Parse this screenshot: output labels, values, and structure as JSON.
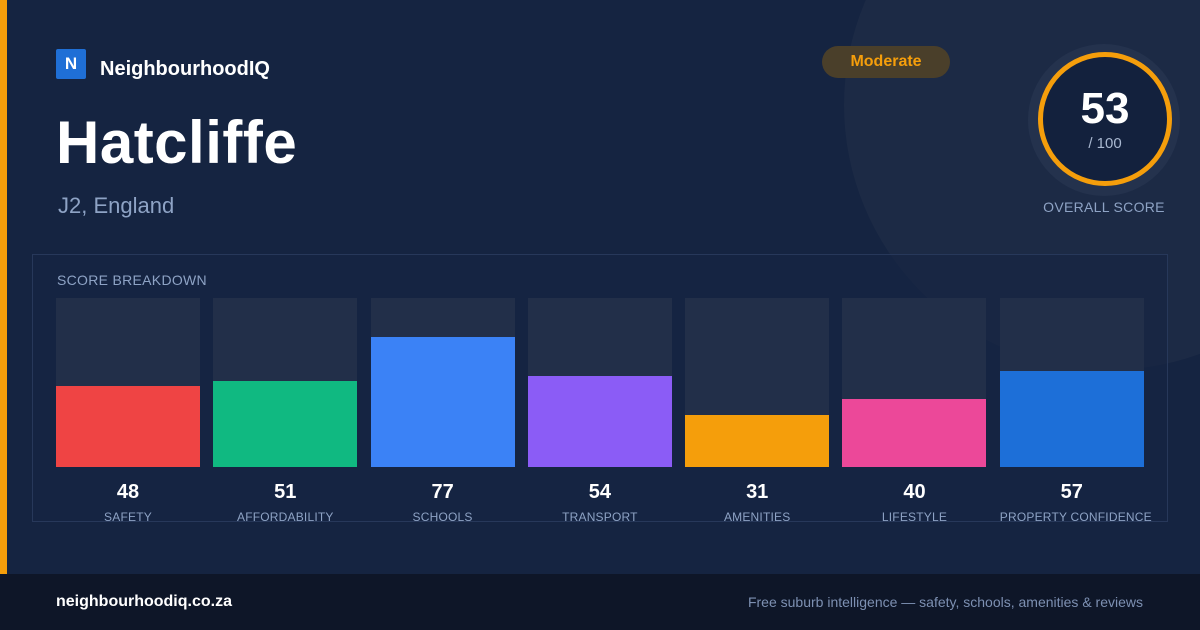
{
  "brand": {
    "logo_letter": "N",
    "name": "NeighbourhoodIQ"
  },
  "place": {
    "name": "Hatcliffe",
    "region": "J2, England"
  },
  "badge": "Moderate",
  "overall": {
    "score": "53",
    "denominator": "/ 100",
    "label": "OVERALL SCORE"
  },
  "breakdown": {
    "title": "SCORE BREAKDOWN",
    "items": [
      {
        "label": "SAFETY",
        "value": "48",
        "color": "#ef4444"
      },
      {
        "label": "AFFORDABILITY",
        "value": "51",
        "color": "#10b981"
      },
      {
        "label": "SCHOOLS",
        "value": "77",
        "color": "#3b82f6"
      },
      {
        "label": "TRANSPORT",
        "value": "54",
        "color": "#8b5cf6"
      },
      {
        "label": "AMENITIES",
        "value": "31",
        "color": "#f59e0b"
      },
      {
        "label": "LIFESTYLE",
        "value": "40",
        "color": "#ec4899"
      },
      {
        "label": "PROPERTY CONFIDENCE",
        "value": "57",
        "color": "#1d6fd8"
      }
    ]
  },
  "footer": {
    "url": "neighbourhoodiq.co.za",
    "tagline": "Free suburb intelligence — safety, schools, amenities & reviews"
  },
  "colors": {
    "accent": "#f59e0b",
    "background": "#152441"
  }
}
